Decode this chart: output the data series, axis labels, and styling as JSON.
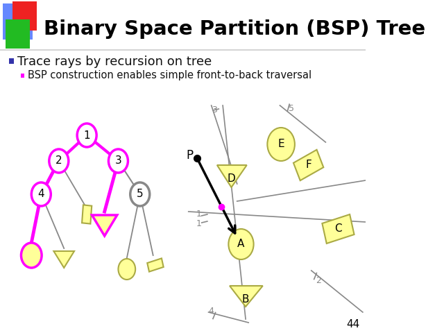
{
  "title": "Binary Space Partition (BSP) Tree",
  "bullet1": "Trace rays by recursion on tree",
  "bullet2": "BSP construction enables simple front-to-back traversal",
  "bg_color": "#ffffff",
  "title_color": "#000000",
  "magenta": "#FF00FF",
  "gray": "#888888",
  "yellow_fill": "#FFFF99",
  "yellow_stroke": "#AAAA44",
  "slide_number": "44",
  "header_blue": "#6688FF",
  "header_red": "#EE2222",
  "header_green": "#22BB22"
}
